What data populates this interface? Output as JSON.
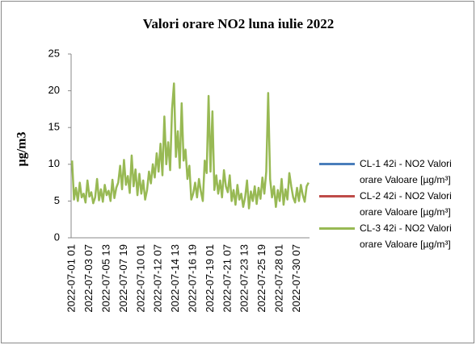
{
  "chart_data": {
    "type": "line",
    "title": "Valori orare NO2 luna iulie 2022",
    "ylabel": "µg/m3",
    "categories": [
      "2022-07-01 01",
      null,
      null,
      null,
      null,
      null,
      null,
      null,
      null,
      "2022-07-03 07",
      null,
      null,
      null,
      null,
      null,
      null,
      null,
      null,
      "2022-07-05 13",
      null,
      null,
      null,
      null,
      null,
      null,
      null,
      null,
      "2022-07-07 19",
      null,
      null,
      null,
      null,
      null,
      null,
      null,
      null,
      "2022-07-10 01",
      null,
      null,
      null,
      null,
      null,
      null,
      null,
      null,
      "2022-07-12 07",
      null,
      null,
      null,
      null,
      null,
      null,
      null,
      null,
      "2022-07-14 13",
      null,
      null,
      null,
      null,
      null,
      null,
      null,
      null,
      "2022-07-16 19",
      null,
      null,
      null,
      null,
      null,
      null,
      null,
      null,
      "2022-07-19 01",
      null,
      null,
      null,
      null,
      null,
      null,
      null,
      null,
      "2022-07-21 07",
      null,
      null,
      null,
      null,
      null,
      null,
      null,
      null,
      "2022-07-23 13",
      null,
      null,
      null,
      null,
      null,
      null,
      null,
      null,
      "2022-07-25 19",
      null,
      null,
      null,
      null,
      null,
      null,
      null,
      null,
      "2022-07-28 01",
      null,
      null,
      null,
      null,
      null,
      null,
      null,
      null,
      "2022-07-30 07",
      null,
      null,
      null,
      null,
      null,
      null
    ],
    "series": [
      {
        "name": "CL-1 42i - NO2 Valori orare Valoare [µg/m³]",
        "color": "#4a7ebb",
        "values": [
          null,
          null,
          null,
          null,
          null,
          null,
          null,
          null,
          null,
          null,
          null,
          null,
          null,
          null,
          null,
          null,
          null,
          null,
          null,
          null,
          null,
          null,
          null,
          null,
          null,
          null,
          null,
          null,
          null,
          null,
          null,
          null,
          null,
          null,
          null,
          null,
          null,
          null,
          null,
          null,
          null,
          null,
          null,
          null,
          null,
          null,
          null,
          null,
          null,
          null,
          null,
          null,
          null,
          null,
          null,
          null,
          null,
          null,
          null,
          null,
          null,
          null,
          null,
          null,
          null,
          null,
          null,
          null,
          null,
          null,
          null,
          null,
          null,
          null,
          null,
          null,
          null,
          null,
          null,
          null,
          null,
          null,
          null,
          null,
          null,
          null,
          null,
          null,
          null,
          null,
          null,
          null,
          null,
          null,
          null,
          null,
          null,
          null,
          null,
          null,
          null,
          null,
          null,
          null,
          null,
          null,
          null,
          null,
          null,
          null,
          null,
          null,
          null,
          null,
          null,
          null,
          null,
          null,
          null,
          null,
          null,
          null,
          null,
          null
        ]
      },
      {
        "name": "CL-2 42i - NO2 Valori orare Valoare [µg/m³]",
        "color": "#be4b48",
        "values": [
          null,
          null,
          null,
          null,
          null,
          null,
          null,
          null,
          null,
          null,
          null,
          null,
          null,
          null,
          null,
          null,
          null,
          null,
          null,
          null,
          null,
          null,
          null,
          null,
          null,
          null,
          null,
          null,
          null,
          null,
          null,
          null,
          null,
          null,
          null,
          null,
          null,
          null,
          null,
          null,
          null,
          null,
          null,
          null,
          null,
          null,
          null,
          null,
          null,
          null,
          null,
          null,
          null,
          null,
          null,
          null,
          null,
          null,
          null,
          null,
          null,
          null,
          null,
          null,
          null,
          null,
          null,
          null,
          null,
          null,
          null,
          null,
          null,
          null,
          null,
          null,
          null,
          null,
          null,
          null,
          null,
          null,
          null,
          null,
          null,
          null,
          null,
          null,
          null,
          null,
          null,
          null,
          null,
          null,
          null,
          null,
          null,
          null,
          null,
          null,
          null,
          null,
          null,
          null,
          null,
          null,
          null,
          null,
          null,
          null,
          null,
          null,
          null,
          null,
          null,
          null,
          null,
          null,
          null,
          null,
          null,
          null,
          null,
          null
        ]
      },
      {
        "name": "CL-3 42i - NO2 Valori orare Valoare [µg/m³]",
        "color": "#98b954",
        "values": [
          10.5,
          5.2,
          6.8,
          5.0,
          7.5,
          5.5,
          6.0,
          4.8,
          7.8,
          5.6,
          6.2,
          4.7,
          5.5,
          8.0,
          5.1,
          6.6,
          4.9,
          7.2,
          5.8,
          6.4,
          5.0,
          7.9,
          5.4,
          6.8,
          7.5,
          9.8,
          6.6,
          10.6,
          7.2,
          8.4,
          6.1,
          11.2,
          7.0,
          9.3,
          5.8,
          8.7,
          6.0,
          7.8,
          5.2,
          6.5,
          9.0,
          7.4,
          10.0,
          8.2,
          11.5,
          9.0,
          12.8,
          8.5,
          16.5,
          10.0,
          13.0,
          9.2,
          17.5,
          21.0,
          11.0,
          14.5,
          9.5,
          18.3,
          10.5,
          12.0,
          8.0,
          9.8,
          5.2,
          6.0,
          7.5,
          5.5,
          8.0,
          6.3,
          5.0,
          10.5,
          8.8,
          19.3,
          9.0,
          17.2,
          6.5,
          8.5,
          6.0,
          7.8,
          5.5,
          9.2,
          7.0,
          6.2,
          8.5,
          5.0,
          6.5,
          4.5,
          7.2,
          5.2,
          6.0,
          4.2,
          5.5,
          7.8,
          4.0,
          6.3,
          5.0,
          7.0,
          4.6,
          6.8,
          5.3,
          8.2,
          6.0,
          9.0,
          19.7,
          8.0,
          5.5,
          7.0,
          4.2,
          6.5,
          5.0,
          8.0,
          4.5,
          6.6,
          5.2,
          8.8,
          7.0,
          5.5,
          4.8,
          6.8,
          5.0,
          7.2,
          5.8,
          4.9,
          7.0,
          7.5
        ]
      }
    ],
    "ylim": [
      0,
      25
    ],
    "yticks": [
      0,
      5,
      10,
      15,
      20,
      25
    ],
    "grid": false,
    "legend": "right"
  }
}
